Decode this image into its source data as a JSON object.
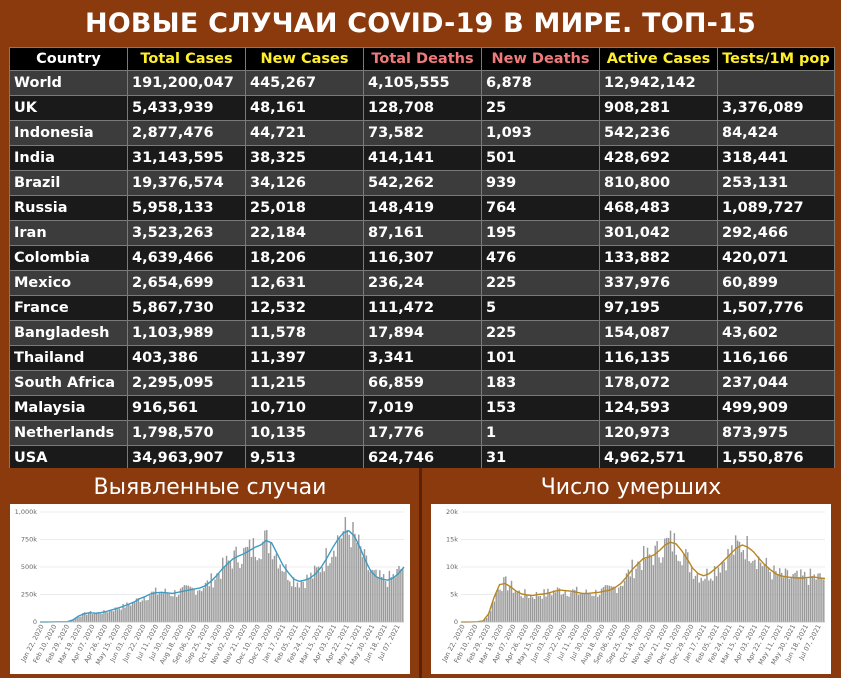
{
  "title": "НОВЫЕ СЛУЧАИ COVID-19 В МИРЕ. ТОП-15",
  "table": {
    "columns": [
      "Country",
      "Total Cases",
      "New Cases",
      "Total Deaths",
      "New Deaths",
      "Active Cases",
      "Tests/1M pop"
    ],
    "rows": [
      [
        "World",
        "191,200,047",
        "445,267",
        "4,105,555",
        "6,878",
        "12,942,142",
        ""
      ],
      [
        "UK",
        "5,433,939",
        "48,161",
        "128,708",
        "25",
        "908,281",
        "3,376,089"
      ],
      [
        "Indonesia",
        "2,877,476",
        "44,721",
        "73,582",
        "1,093",
        "542,236",
        "84,424"
      ],
      [
        "India",
        "31,143,595",
        "38,325",
        "414,141",
        "501",
        "428,692",
        "318,441"
      ],
      [
        "Brazil",
        "19,376,574",
        "34,126",
        "542,262",
        "939",
        "810,800",
        "253,131"
      ],
      [
        "Russia",
        "5,958,133",
        "25,018",
        "148,419",
        "764",
        "468,483",
        "1,089,727"
      ],
      [
        "Iran",
        "3,523,263",
        "22,184",
        "87,161",
        "195",
        "301,042",
        "292,466"
      ],
      [
        "Colombia",
        "4,639,466",
        "18,206",
        "116,307",
        "476",
        "133,882",
        "420,071"
      ],
      [
        "Mexico",
        "2,654,699",
        "12,631",
        "236,24",
        "225",
        "337,976",
        "60,899"
      ],
      [
        "France",
        "5,867,730",
        "12,532",
        "111,472",
        "5",
        "97,195",
        "1,507,776"
      ],
      [
        "Bangladesh",
        "1,103,989",
        "11,578",
        "17,894",
        "225",
        "154,087",
        "43,602"
      ],
      [
        "Thailand",
        "403,386",
        "11,397",
        "3,341",
        "101",
        "116,135",
        "116,166"
      ],
      [
        "South Africa",
        "2,295,095",
        "11,215",
        "66,859",
        "183",
        "178,072",
        "237,044"
      ],
      [
        "Malaysia",
        "916,561",
        "10,710",
        "7,019",
        "153",
        "124,593",
        "499,909"
      ],
      [
        "Netherlands",
        "1,798,570",
        "10,135",
        "17,776",
        "1",
        "120,973",
        "873,975"
      ],
      [
        "USA",
        "34,963,907",
        "9,513",
        "624,746",
        "31",
        "4,962,571",
        "1,550,876"
      ]
    ]
  },
  "colors": {
    "background": "#8b3a0e",
    "header_yellow": "#ffef2a",
    "header_red": "#f07a7a",
    "cases_line": "#3a9cc4",
    "deaths_line": "#b8861f",
    "bars": "#9a9a9a"
  },
  "chart_data": [
    {
      "type": "bar",
      "title": "Выявленные случаи",
      "ylim": [
        0,
        1000000
      ],
      "yticks": [
        "0",
        "250k",
        "500k",
        "750k",
        "1,000k"
      ],
      "xticks": [
        "Jan 22, 2020",
        "Feb 10, 2020",
        "Feb 29, 2020",
        "Mar 19, 2020",
        "Apr 07, 2020",
        "Apr 26, 2020",
        "May 15, 2020",
        "Jun 03, 2020",
        "Jun 22, 2020",
        "Jul 11, 2020",
        "Jul 30, 2020",
        "Aug 18, 2020",
        "Sep 06, 2020",
        "Sep 25, 2020",
        "Oct 14, 2020",
        "Nov 02, 2020",
        "Nov 21, 2020",
        "Dec 10, 2020",
        "Dec 29, 2020",
        "Jan 17, 2021",
        "Feb 05, 2021",
        "Feb 24, 2021",
        "Mar 15, 2021",
        "Apr 03, 2021",
        "Apr 22, 2021",
        "May 11, 2021",
        "May 30, 2021",
        "Jun 18, 2021",
        "Jul 07, 2021"
      ],
      "series": [
        {
          "kind": "moving-average",
          "values": [
            0,
            0,
            1000,
            1500,
            2000,
            3000,
            20000,
            55000,
            75000,
            85000,
            80000,
            85000,
            95000,
            110000,
            125000,
            140000,
            160000,
            180000,
            210000,
            230000,
            255000,
            265000,
            270000,
            265000,
            260000,
            270000,
            280000,
            290000,
            300000,
            310000,
            330000,
            370000,
            420000,
            480000,
            530000,
            575000,
            600000,
            620000,
            650000,
            680000,
            700000,
            740000,
            720000,
            620000,
            520000,
            450000,
            390000,
            370000,
            380000,
            400000,
            440000,
            500000,
            580000,
            670000,
            750000,
            810000,
            830000,
            780000,
            680000,
            560000,
            460000,
            410000,
            390000,
            380000,
            400000,
            440000,
            500000
          ]
        }
      ]
    },
    {
      "type": "bar",
      "title": "Число умерших",
      "ylim": [
        0,
        20000
      ],
      "yticks": [
        "0",
        "5k",
        "10k",
        "15k",
        "20k"
      ],
      "xticks": [
        "Jan 22, 2020",
        "Feb 10, 2020",
        "Feb 29, 2020",
        "Mar 19, 2020",
        "Apr 07, 2020",
        "Apr 26, 2020",
        "May 15, 2020",
        "Jun 03, 2020",
        "Jun 22, 2020",
        "Jul 11, 2020",
        "Jul 30, 2020",
        "Aug 18, 2020",
        "Sep 06, 2020",
        "Sep 25, 2020",
        "Oct 14, 2020",
        "Nov 02, 2020",
        "Nov 21, 2020",
        "Dec 10, 2020",
        "Dec 29, 2020",
        "Jan 17, 2021",
        "Feb 05, 2021",
        "Feb 24, 2021",
        "Mar 15, 2021",
        "Apr 03, 2021",
        "Apr 22, 2021",
        "May 11, 2021",
        "May 30, 2021",
        "Jun 18, 2021",
        "Jul 07, 2021"
      ],
      "series": [
        {
          "kind": "moving-average",
          "values": [
            0,
            0,
            20,
            60,
            200,
            1500,
            4500,
            6800,
            7000,
            6400,
            5600,
            5100,
            4900,
            4800,
            5000,
            5100,
            5300,
            5600,
            5800,
            5700,
            5600,
            5400,
            5200,
            5200,
            5300,
            5400,
            5600,
            5800,
            6300,
            7000,
            8200,
            9500,
            10500,
            11500,
            11800,
            12200,
            13000,
            14000,
            14500,
            14200,
            13000,
            11500,
            9800,
            8800,
            8400,
            8800,
            9600,
            10500,
            11500,
            12500,
            13500,
            14000,
            13600,
            12800,
            11600,
            10500,
            9600,
            8800,
            8400,
            8200,
            8100,
            8000,
            8000,
            8100,
            8200,
            8000,
            7900
          ]
        }
      ]
    }
  ]
}
